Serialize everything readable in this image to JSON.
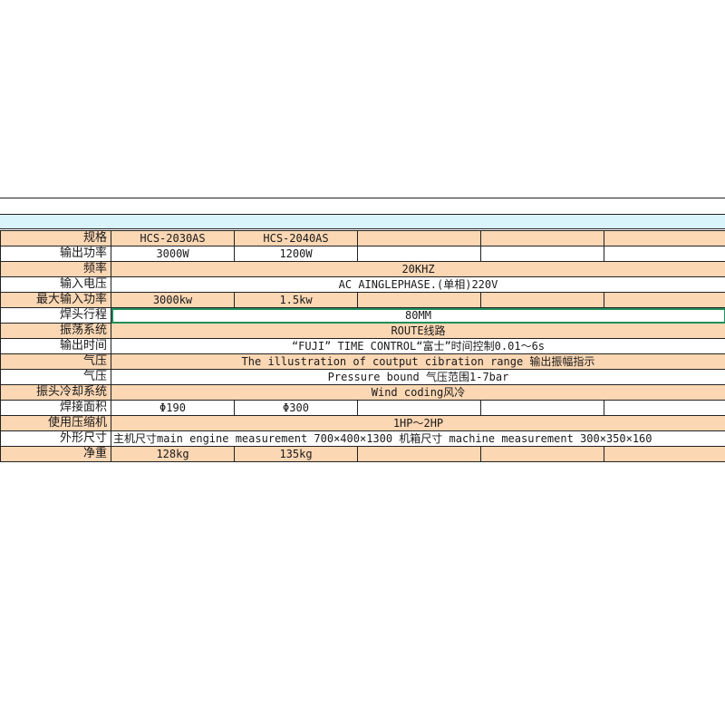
{
  "table": {
    "rows": [
      {
        "label": "规格",
        "cells": [
          "HCS-2030AS",
          "HCS-2040AS",
          "",
          "",
          ""
        ],
        "style": "peach",
        "span": false
      },
      {
        "label": "输出功率",
        "cells": [
          "3000W",
          "1200W",
          "",
          "",
          ""
        ],
        "style": "white",
        "span": false
      },
      {
        "label": "频率",
        "value": "20KHZ",
        "style": "peach",
        "span": true
      },
      {
        "label": "输入电压",
        "value": "AC AINGLEPHASE.(单相)220V",
        "style": "white",
        "span": true
      },
      {
        "label": "最大输入功率",
        "cells": [
          "3000kw",
          "1.5kw",
          "",
          "",
          ""
        ],
        "style": "peach",
        "span": false
      },
      {
        "label": "焊头行程",
        "value": "80MM",
        "style": "white",
        "span": true,
        "selected": true
      },
      {
        "label": "振荡系统",
        "value": "ROUTE线路",
        "style": "peach",
        "span": true
      },
      {
        "label": "输出时间",
        "value": "“FUJI” TIME CONTROL“富士”时间控制0.01～6s",
        "style": "white",
        "span": true
      },
      {
        "label": "气压",
        "value": "The illustration of coutput cibration range  输出振幅指示",
        "style": "peach",
        "span": true
      },
      {
        "label": "气压",
        "value": "Pressure bound 气压范围1-7bar",
        "style": "white",
        "span": true
      },
      {
        "label": "振头冷却系统",
        "value": "Wind coding风冷",
        "style": "peach",
        "span": true
      },
      {
        "label": "焊接面积",
        "cells": [
          "Φ190",
          "Φ300",
          "",
          "",
          ""
        ],
        "style": "white",
        "span": false
      },
      {
        "label": "使用压缩机",
        "value": "1HP～2HP",
        "style": "peach",
        "span": true
      },
      {
        "label": "外形尺寸",
        "value": "主机尺寸main engine measurement 700×400×1300 机箱尺寸 machine measurement 300×350×160",
        "style": "white",
        "span": true,
        "left": true
      },
      {
        "label": "净重",
        "cells": [
          "128kg",
          "135kg",
          "",
          "",
          ""
        ],
        "style": "peach",
        "span": false
      }
    ]
  }
}
